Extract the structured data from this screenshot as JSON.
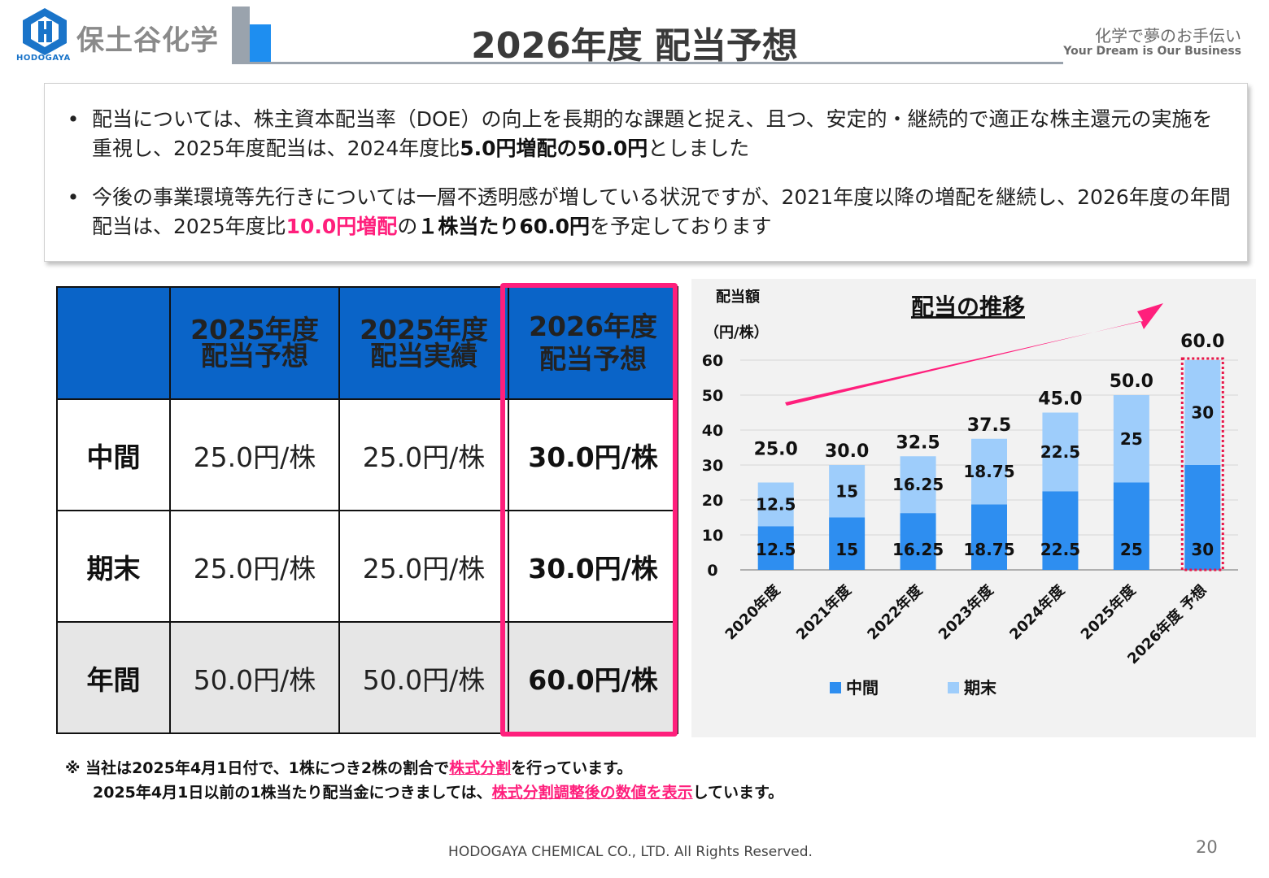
{
  "header": {
    "company_name": "保土谷化学",
    "company_sub": "HODOGAYA",
    "title": "2026年度 配当予想",
    "tagline_jp": "化学で夢のお手伝い",
    "tagline_en": "Your Dream is Our Business"
  },
  "bullets": [
    {
      "dot": "•",
      "pre": "配当については、株主資本配当率（DOE）の向上を長期的な課題と捉え、且つ、安定的・継続的で適正な株主還元の実施を重視し、2025年度配当は、2024年度比",
      "emph": "5.0円増配の50.0円",
      "post": "としました"
    },
    {
      "dot": "•",
      "pre": "今後の事業環境等先行きについては一層不透明感が増している状況ですが、2021年度以降の増配を継続し、2026年度の年間配当は、2025年度比",
      "emph_pink": "10.0円増配",
      "mid": "の",
      "emph": "１株当たり60.0円",
      "post": "を予定しております"
    }
  ],
  "table": {
    "headers": [
      {
        "line1": "2025年度",
        "line2": "配当予想"
      },
      {
        "line1": "2025年度",
        "line2": "配当実績"
      },
      {
        "line1": "2026年度",
        "line2": "配当予想"
      }
    ],
    "rows": [
      {
        "label": "中間",
        "values": [
          "25.0円/株",
          "25.0円/株",
          "30.0円/株"
        ]
      },
      {
        "label": "期末",
        "values": [
          "25.0円/株",
          "25.0円/株",
          "30.0円/株"
        ]
      },
      {
        "label": "年間",
        "values": [
          "50.0円/株",
          "50.0円/株",
          "60.0円/株"
        ]
      }
    ]
  },
  "chart_data": {
    "type": "bar",
    "stacked": true,
    "title": "配当の推移",
    "ylabel": "配当額",
    "yunit": "（円/株）",
    "ylim": [
      0,
      60
    ],
    "yticks": [
      0,
      10,
      20,
      30,
      40,
      50,
      60
    ],
    "categories": [
      "2020年度",
      "2021年度",
      "2022年度",
      "2023年度",
      "2024年度",
      "2025年度",
      "2026年度 予想"
    ],
    "series": [
      {
        "name": "中間",
        "color": "#2e8ef0",
        "values": [
          12.5,
          15,
          16.25,
          18.75,
          22.5,
          25,
          30
        ],
        "labels": [
          "12.5",
          "15",
          "16.25",
          "18.75",
          "22.5",
          "25",
          "30"
        ]
      },
      {
        "name": "期末",
        "color": "#9ecdfb",
        "values": [
          12.5,
          15,
          16.25,
          18.75,
          22.5,
          25,
          30
        ],
        "labels": [
          "12.5",
          "15",
          "16.25",
          "18.75",
          "22.5",
          "25",
          "30"
        ]
      }
    ],
    "totals": [
      "25.0",
      "30.0",
      "32.5",
      "37.5",
      "45.0",
      "50.0",
      "60.0"
    ],
    "legend_position": "bottom",
    "grid": true,
    "highlight_color": "#e8174a",
    "arrow_color": "#ff1f7c"
  },
  "footnote": {
    "line1_pre": "※ 当社は2025年4月1日付で、1株につき2株の割合で",
    "line1_link": "株式分割",
    "line1_post": "を行っています。",
    "line2_pre": "2025年4月1日以前の1株当たり配当金につきましては、",
    "line2_link": "株式分割調整後の数値を表示",
    "line2_post": "しています。"
  },
  "footer": {
    "copyright": "HODOGAYA CHEMICAL CO., LTD. All Rights Reserved.",
    "page_number": "20"
  }
}
